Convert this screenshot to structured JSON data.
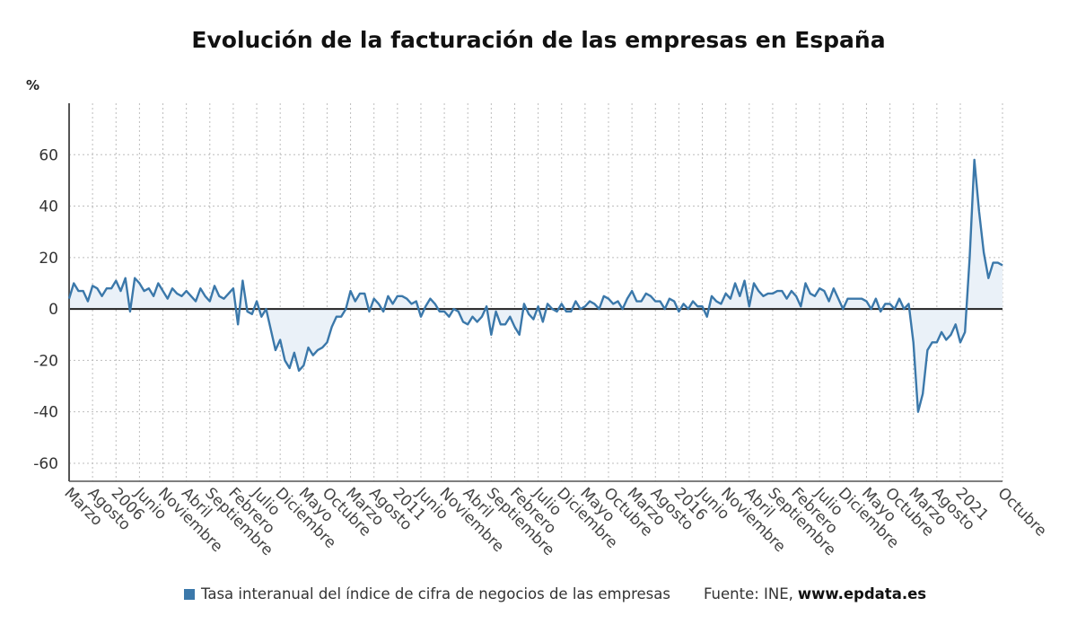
{
  "title": "Evolución de la facturación de las empresas en España",
  "legend": {
    "label": "Tasa interanual del índice de cifra de negocios de las empresas",
    "source_prefix": "Fuente: INE,",
    "source_url": "www.epdata.es"
  },
  "colors": {
    "line": "#3b78aa",
    "area": "#eaf1f8",
    "zero_line": "#222222",
    "grid": "#bdbdbd"
  },
  "chart_data": {
    "type": "line",
    "title": "Evolución de la facturación de las empresas en España",
    "ylabel": "%",
    "xlabel": "",
    "ylim": [
      -67,
      80
    ],
    "yticks": [
      60,
      40,
      20,
      0,
      -20,
      -40,
      -60
    ],
    "x_start": "2005-03",
    "x_end": "2021-10",
    "grid": true,
    "legend_position": "bottom",
    "x_tick_labels": [
      "Marzo",
      "Agosto",
      "2006",
      "Junio",
      "Noviembre",
      "Abril",
      "Septiembre",
      "Febrero",
      "Julio",
      "Diciembre",
      "Mayo",
      "Octubre",
      "Marzo",
      "Agosto",
      "2011",
      "Junio",
      "Noviembre",
      "Abril",
      "Septiembre",
      "Febrero",
      "Julio",
      "Diciembre",
      "Mayo",
      "Octubre",
      "Marzo",
      "Agosto",
      "2016",
      "Junio",
      "Noviembre",
      "Abril",
      "Septiembre",
      "Febrero",
      "Julio",
      "Diciembre",
      "Mayo",
      "Octubre",
      "Marzo",
      "Agosto",
      "2021",
      "Octubre"
    ],
    "x_tick_months": [
      "2005-03",
      "2005-08",
      "2006-01",
      "2006-06",
      "2006-11",
      "2007-04",
      "2007-09",
      "2008-02",
      "2008-07",
      "2008-12",
      "2009-05",
      "2009-10",
      "2010-03",
      "2010-08",
      "2011-01",
      "2011-06",
      "2011-11",
      "2012-04",
      "2012-09",
      "2013-02",
      "2013-07",
      "2013-12",
      "2014-05",
      "2014-10",
      "2015-03",
      "2015-08",
      "2016-01",
      "2016-06",
      "2016-11",
      "2017-04",
      "2017-09",
      "2018-02",
      "2018-07",
      "2018-12",
      "2019-05",
      "2019-10",
      "2020-03",
      "2020-08",
      "2021-01",
      "2021-10"
    ],
    "series": [
      {
        "name": "Tasa interanual del índice de cifra de negocios de las empresas",
        "values": [
          4,
          10,
          7,
          7,
          3,
          9,
          8,
          5,
          8,
          8,
          11,
          7,
          12,
          -1,
          12,
          10,
          7,
          8,
          5,
          10,
          7,
          4,
          8,
          6,
          5,
          7,
          5,
          3,
          8,
          5,
          3,
          9,
          5,
          4,
          6,
          8,
          -6,
          11,
          -1,
          -2,
          3,
          -3,
          0,
          -8,
          -16,
          -12,
          -20,
          -23,
          -17,
          -24,
          -22,
          -15,
          -18,
          -16,
          -15,
          -13,
          -7,
          -3,
          -3,
          0,
          7,
          3,
          6,
          6,
          -1,
          4,
          2,
          -1,
          5,
          2,
          5,
          5,
          4,
          2,
          3,
          -3,
          1,
          4,
          2,
          -1,
          -1,
          -3,
          0,
          -1,
          -5,
          -6,
          -3,
          -5,
          -3,
          1,
          -10,
          -1,
          -6,
          -6,
          -3,
          -7,
          -10,
          2,
          -2,
          -4,
          1,
          -5,
          2,
          0,
          -1,
          2,
          -1,
          -1,
          3,
          0,
          1,
          3,
          2,
          0,
          5,
          4,
          2,
          3,
          0,
          4,
          7,
          3,
          3,
          6,
          5,
          3,
          3,
          0,
          4,
          3,
          -1,
          2,
          0,
          3,
          1,
          1,
          -3,
          5,
          3,
          2,
          6,
          4,
          10,
          5,
          11,
          1,
          10,
          7,
          5,
          6,
          6,
          7,
          7,
          4,
          7,
          5,
          1,
          10,
          6,
          5,
          8,
          7,
          3,
          8,
          4,
          0,
          4,
          4,
          4,
          4,
          3,
          0,
          4,
          -1,
          2,
          2,
          0,
          4,
          0,
          2,
          -13,
          -40,
          -33,
          -16,
          -13,
          -13,
          -9,
          -12,
          -10,
          -6,
          -13,
          -9,
          20,
          58,
          38,
          22,
          12,
          18,
          18,
          17
        ]
      }
    ]
  }
}
